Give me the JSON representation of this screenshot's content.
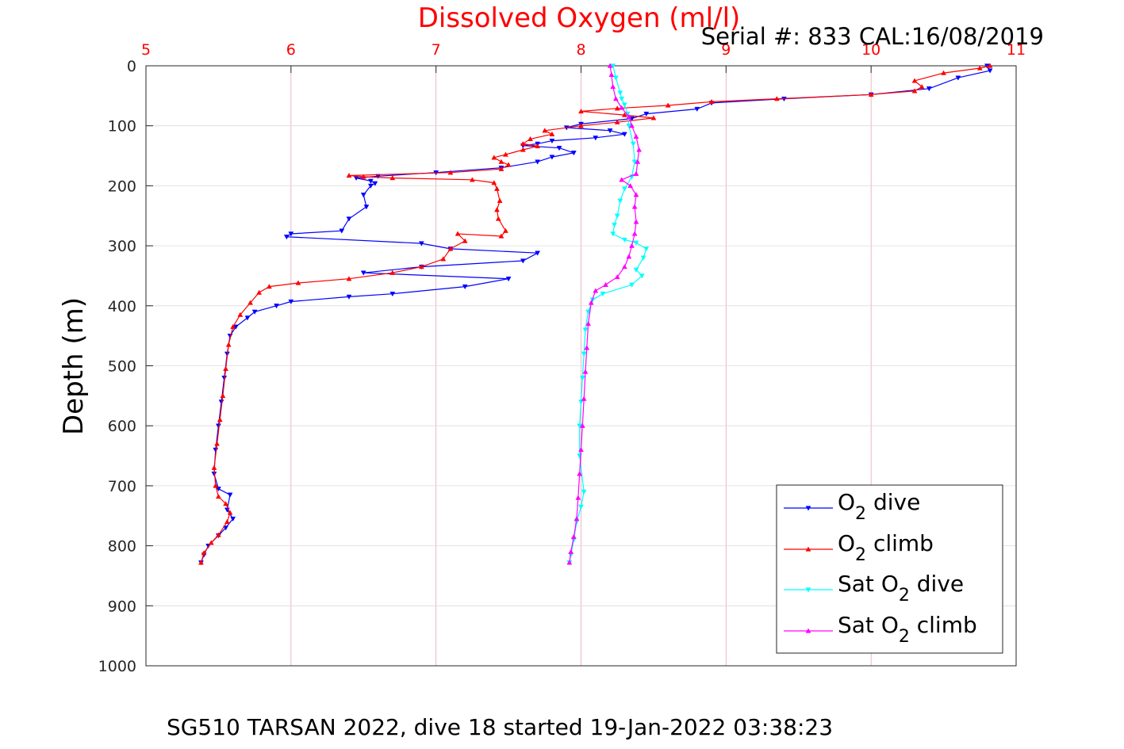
{
  "chart_data": {
    "type": "line",
    "title": "Dissolved Oxygen (ml/l)",
    "subtitle": "Serial #: 833  CAL:16/08/2019",
    "caption": "SG510 TARSAN 2022, dive 18 started 19-Jan-2022 03:38:23",
    "xlabel": "",
    "ylabel": "Depth (m)",
    "xlim": [
      5,
      11
    ],
    "ylim": [
      0,
      1000
    ],
    "y_reversed": true,
    "x_axis_position": "top",
    "grid": true,
    "legend_placement": "bottom-right",
    "x_ticks": [
      "5",
      "6",
      "7",
      "8",
      "9",
      "10",
      "11"
    ],
    "y_ticks": [
      "0",
      "100",
      "200",
      "300",
      "400",
      "500",
      "600",
      "700",
      "800",
      "900",
      "1000"
    ],
    "colors": {
      "title": "#ff0000",
      "x_ticks": "#ff0000",
      "grid": "#e6a6b4",
      "axis": "#262626"
    },
    "series": [
      {
        "name": "O2 dive",
        "legend_main": "O",
        "legend_sub": "2",
        "legend_rest": " dive",
        "legend_pre": "",
        "color": "#0000ff",
        "marker": "triangle-down",
        "points": [
          [
            10.8,
            0
          ],
          [
            10.82,
            8
          ],
          [
            10.6,
            20
          ],
          [
            10.4,
            38
          ],
          [
            10.0,
            48
          ],
          [
            9.4,
            55
          ],
          [
            8.9,
            62
          ],
          [
            8.8,
            72
          ],
          [
            8.45,
            80
          ],
          [
            8.35,
            88
          ],
          [
            8.0,
            97
          ],
          [
            7.9,
            103
          ],
          [
            8.2,
            108
          ],
          [
            8.3,
            114
          ],
          [
            8.1,
            120
          ],
          [
            7.8,
            125
          ],
          [
            7.7,
            130
          ],
          [
            7.6,
            133
          ],
          [
            7.85,
            137
          ],
          [
            7.95,
            145
          ],
          [
            7.8,
            152
          ],
          [
            7.7,
            160
          ],
          [
            7.45,
            170
          ],
          [
            7.0,
            178
          ],
          [
            6.6,
            184
          ],
          [
            6.45,
            187
          ],
          [
            6.55,
            192
          ],
          [
            6.58,
            196
          ],
          [
            6.55,
            200
          ],
          [
            6.5,
            215
          ],
          [
            6.52,
            235
          ],
          [
            6.4,
            255
          ],
          [
            6.35,
            275
          ],
          [
            6.0,
            280
          ],
          [
            5.97,
            285
          ],
          [
            6.9,
            296
          ],
          [
            7.1,
            305
          ],
          [
            7.7,
            312
          ],
          [
            7.6,
            325
          ],
          [
            6.9,
            335
          ],
          [
            6.5,
            345
          ],
          [
            7.5,
            355
          ],
          [
            7.2,
            368
          ],
          [
            6.7,
            380
          ],
          [
            6.4,
            385
          ],
          [
            6.0,
            393
          ],
          [
            5.9,
            400
          ],
          [
            5.75,
            410
          ],
          [
            5.7,
            420
          ],
          [
            5.62,
            435
          ],
          [
            5.58,
            450
          ],
          [
            5.56,
            480
          ],
          [
            5.54,
            520
          ],
          [
            5.52,
            560
          ],
          [
            5.5,
            600
          ],
          [
            5.48,
            640
          ],
          [
            5.47,
            680
          ],
          [
            5.5,
            705
          ],
          [
            5.58,
            715
          ],
          [
            5.56,
            740
          ],
          [
            5.6,
            755
          ],
          [
            5.55,
            770
          ],
          [
            5.5,
            783
          ],
          [
            5.43,
            800
          ],
          [
            5.4,
            815
          ],
          [
            5.38,
            828
          ]
        ]
      },
      {
        "name": "O2 climb",
        "legend_main": "O",
        "legend_sub": "2",
        "legend_rest": " climb",
        "legend_pre": "",
        "color": "#ff0000",
        "marker": "triangle-up",
        "points": [
          [
            5.38,
            828
          ],
          [
            5.4,
            812
          ],
          [
            5.45,
            795
          ],
          [
            5.5,
            782
          ],
          [
            5.56,
            760
          ],
          [
            5.58,
            745
          ],
          [
            5.55,
            730
          ],
          [
            5.5,
            718
          ],
          [
            5.48,
            700
          ],
          [
            5.47,
            670
          ],
          [
            5.49,
            630
          ],
          [
            5.51,
            590
          ],
          [
            5.53,
            550
          ],
          [
            5.55,
            505
          ],
          [
            5.57,
            465
          ],
          [
            5.6,
            435
          ],
          [
            5.65,
            415
          ],
          [
            5.72,
            395
          ],
          [
            5.78,
            378
          ],
          [
            5.85,
            368
          ],
          [
            6.05,
            362
          ],
          [
            6.4,
            355
          ],
          [
            6.7,
            345
          ],
          [
            6.9,
            335
          ],
          [
            7.05,
            322
          ],
          [
            7.1,
            305
          ],
          [
            7.2,
            292
          ],
          [
            7.15,
            280
          ],
          [
            7.45,
            284
          ],
          [
            7.48,
            275
          ],
          [
            7.43,
            255
          ],
          [
            7.42,
            240
          ],
          [
            7.44,
            225
          ],
          [
            7.42,
            205
          ],
          [
            7.4,
            195
          ],
          [
            7.25,
            190
          ],
          [
            6.7,
            187
          ],
          [
            6.5,
            185
          ],
          [
            6.4,
            183
          ],
          [
            7.1,
            178
          ],
          [
            7.45,
            172
          ],
          [
            7.5,
            165
          ],
          [
            7.45,
            160
          ],
          [
            7.4,
            153
          ],
          [
            7.48,
            148
          ],
          [
            7.6,
            140
          ],
          [
            7.7,
            134
          ],
          [
            7.6,
            130
          ],
          [
            7.65,
            122
          ],
          [
            7.8,
            114
          ],
          [
            7.75,
            108
          ],
          [
            8.0,
            100
          ],
          [
            8.25,
            94
          ],
          [
            8.5,
            87
          ],
          [
            8.3,
            82
          ],
          [
            8.0,
            76
          ],
          [
            8.25,
            71
          ],
          [
            8.6,
            66
          ],
          [
            8.9,
            60
          ],
          [
            9.35,
            55
          ],
          [
            10.0,
            48
          ],
          [
            10.3,
            42
          ],
          [
            10.35,
            35
          ],
          [
            10.3,
            25
          ],
          [
            10.5,
            12
          ],
          [
            10.75,
            4
          ],
          [
            10.82,
            0
          ]
        ]
      },
      {
        "name": "Sat O2 dive",
        "legend_main": "O",
        "legend_sub": "2",
        "legend_rest": " dive",
        "legend_pre": "Sat ",
        "color": "#00ffff",
        "marker": "triangle-down",
        "points": [
          [
            8.22,
            0
          ],
          [
            8.24,
            20
          ],
          [
            8.27,
            45
          ],
          [
            8.28,
            55
          ],
          [
            8.3,
            65
          ],
          [
            8.32,
            80
          ],
          [
            8.33,
            100
          ],
          [
            8.36,
            130
          ],
          [
            8.37,
            160
          ],
          [
            8.35,
            185
          ],
          [
            8.3,
            205
          ],
          [
            8.27,
            225
          ],
          [
            8.25,
            250
          ],
          [
            8.23,
            265
          ],
          [
            8.22,
            280
          ],
          [
            8.3,
            290
          ],
          [
            8.38,
            295
          ],
          [
            8.45,
            305
          ],
          [
            8.43,
            320
          ],
          [
            8.38,
            340
          ],
          [
            8.42,
            350
          ],
          [
            8.35,
            365
          ],
          [
            8.15,
            380
          ],
          [
            8.08,
            390
          ],
          [
            8.05,
            410
          ],
          [
            8.03,
            440
          ],
          [
            8.02,
            480
          ],
          [
            8.01,
            520
          ],
          [
            8.0,
            560
          ],
          [
            7.99,
            600
          ],
          [
            7.99,
            650
          ],
          [
            8.02,
            710
          ],
          [
            8.0,
            735
          ],
          [
            7.97,
            760
          ],
          [
            7.95,
            790
          ],
          [
            7.93,
            815
          ],
          [
            7.92,
            828
          ]
        ]
      },
      {
        "name": "Sat O2 climb",
        "legend_main": "O",
        "legend_sub": "2",
        "legend_rest": " climb",
        "legend_pre": "Sat ",
        "color": "#ff00ff",
        "marker": "triangle-up",
        "points": [
          [
            7.92,
            828
          ],
          [
            7.93,
            810
          ],
          [
            7.95,
            785
          ],
          [
            7.97,
            755
          ],
          [
            7.98,
            720
          ],
          [
            7.99,
            680
          ],
          [
            8.0,
            640
          ],
          [
            8.01,
            600
          ],
          [
            8.02,
            555
          ],
          [
            8.03,
            510
          ],
          [
            8.04,
            470
          ],
          [
            8.05,
            430
          ],
          [
            8.07,
            395
          ],
          [
            8.1,
            375
          ],
          [
            8.17,
            365
          ],
          [
            8.25,
            352
          ],
          [
            8.3,
            335
          ],
          [
            8.33,
            318
          ],
          [
            8.35,
            300
          ],
          [
            8.37,
            280
          ],
          [
            8.38,
            260
          ],
          [
            8.37,
            235
          ],
          [
            8.38,
            215
          ],
          [
            8.34,
            200
          ],
          [
            8.28,
            190
          ],
          [
            8.38,
            180
          ],
          [
            8.39,
            160
          ],
          [
            8.4,
            140
          ],
          [
            8.38,
            118
          ],
          [
            8.35,
            100
          ],
          [
            8.33,
            85
          ],
          [
            8.28,
            70
          ],
          [
            8.24,
            55
          ],
          [
            8.22,
            35
          ],
          [
            8.21,
            15
          ],
          [
            8.2,
            0
          ]
        ]
      }
    ]
  }
}
